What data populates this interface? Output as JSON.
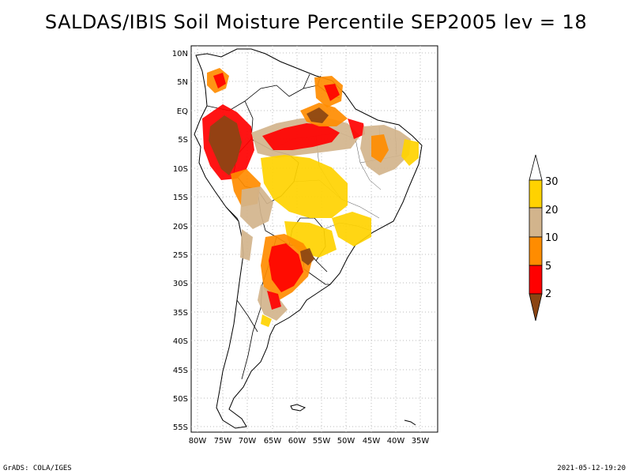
{
  "title": "SALDAS/IBIS Soil Moisture Percentile SEP2005 lev = 18",
  "map": {
    "lat_labels": [
      "10N",
      "5N",
      "EQ",
      "5S",
      "10S",
      "15S",
      "20S",
      "25S",
      "30S",
      "35S",
      "40S",
      "45S",
      "50S",
      "55S"
    ],
    "lon_labels": [
      "80W",
      "75W",
      "70W",
      "65W",
      "60W",
      "55W",
      "50W",
      "45W",
      "40W",
      "35W"
    ]
  },
  "legend": {
    "labels": [
      "30",
      "20",
      "10",
      "5",
      "2"
    ],
    "colors": {
      "above30": "#ffffff",
      "c20_30": "#ffd200",
      "c10_20": "#d2b48c",
      "c5_10": "#ff8c00",
      "c2_5": "#ff0000",
      "below2": "#8b4513"
    }
  },
  "footer": {
    "left": "GrADS: COLA/IGES",
    "right": "2021-05-12-19:20"
  }
}
